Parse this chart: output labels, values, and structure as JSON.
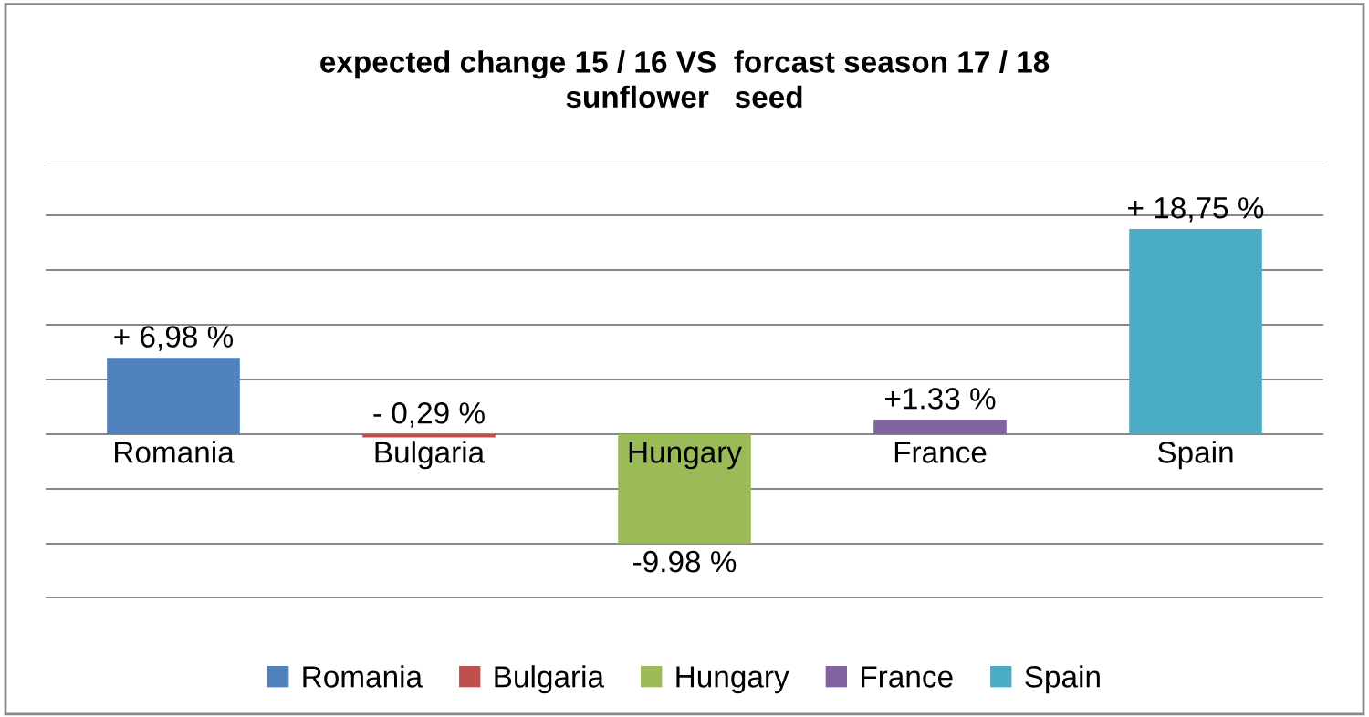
{
  "chart_data": {
    "type": "bar",
    "title": "expected change 15 / 16 VS  forcast season 17 / 18\nsunflower   seed",
    "categories": [
      "Romania",
      "Bulgaria",
      "Hungary",
      "France",
      "Spain"
    ],
    "series": [
      {
        "name": "Romania",
        "color": "#4f81bd",
        "values": [
          6.98,
          null,
          null,
          null,
          null
        ],
        "value_labels": [
          "+ 6,98 %",
          null,
          null,
          null,
          null
        ]
      },
      {
        "name": "Bulgaria",
        "color": "#c0504d",
        "values": [
          null,
          -0.29,
          null,
          null,
          null
        ],
        "value_labels": [
          null,
          "- 0,29 %",
          null,
          null,
          null
        ]
      },
      {
        "name": "Hungary",
        "color": "#9bbb59",
        "values": [
          null,
          null,
          -9.98,
          null,
          null
        ],
        "value_labels": [
          null,
          null,
          "-9.98 %",
          null,
          null
        ]
      },
      {
        "name": "France",
        "color": "#8064a2",
        "values": [
          null,
          null,
          null,
          1.33,
          null
        ],
        "value_labels": [
          null,
          null,
          null,
          "+1.33 %",
          null
        ]
      },
      {
        "name": "Spain",
        "color": "#4bacc6",
        "values": [
          null,
          null,
          null,
          null,
          18.75
        ],
        "value_labels": [
          null,
          null,
          null,
          null,
          "+ 18,75 %"
        ]
      }
    ],
    "stacked": true,
    "ylim": [
      -15,
      25
    ],
    "yticks": [
      {
        "value": -15,
        "label": null
      },
      {
        "value": -10,
        "label": null
      },
      {
        "value": -5,
        "label": null
      },
      {
        "value": 0,
        "label": null
      },
      {
        "value": 5,
        "label": null
      },
      {
        "value": 10,
        "label": null
      },
      {
        "value": 15,
        "label": null
      },
      {
        "value": 20,
        "label": null
      },
      {
        "value": 25,
        "label": null
      }
    ],
    "grid": "y",
    "legend": "bottom"
  }
}
